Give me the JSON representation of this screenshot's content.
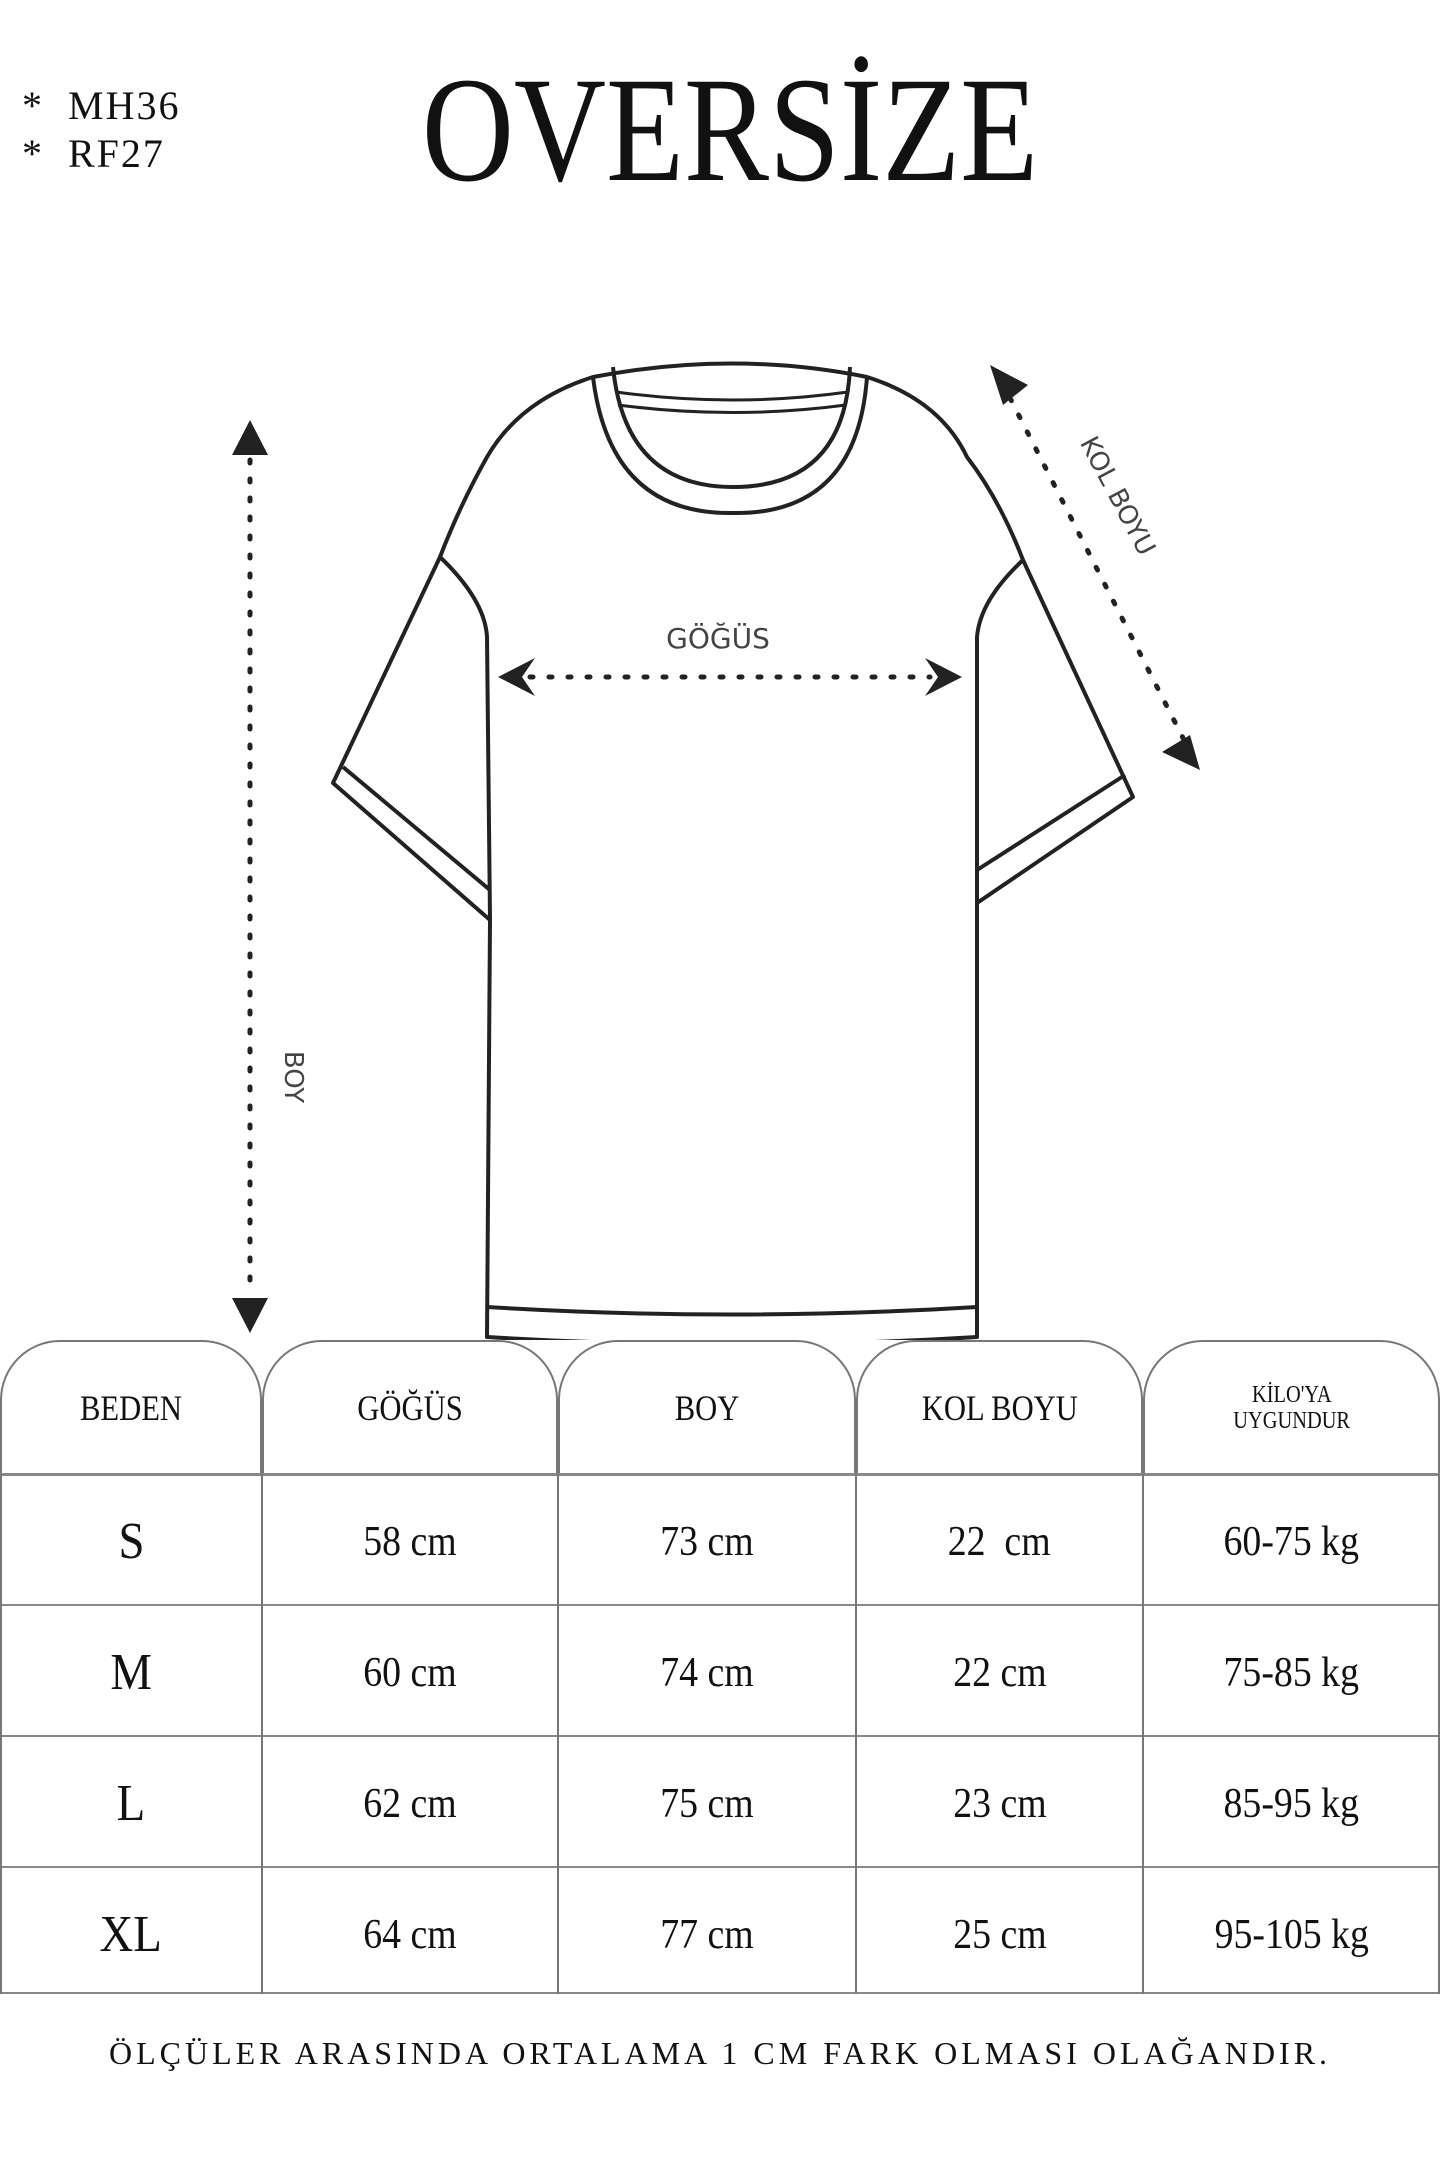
{
  "codes": [
    "*  MH36",
    "*  RF27"
  ],
  "title": "OVERSİZE",
  "diagram": {
    "chest_label": "GÖĞÜS",
    "length_label": "BOY",
    "sleeve_label": "KOL BOYU"
  },
  "table": {
    "headers": [
      "BEDEN",
      "GÖĞÜS",
      "BOY",
      "KOL BOYU",
      "KİLO'YA",
      "UYGUNDUR"
    ],
    "rows": [
      [
        "S",
        "58 cm",
        "73 cm",
        "22  cm",
        "60-75 kg"
      ],
      [
        "M",
        "60 cm",
        "74 cm",
        "22 cm",
        "75-85 kg"
      ],
      [
        "L",
        "62 cm",
        "75 cm",
        "23 cm",
        "85-95 kg"
      ],
      [
        "XL",
        "64 cm",
        "77 cm",
        "25 cm",
        "95-105 kg"
      ]
    ]
  },
  "footer": "ÖLÇÜLER ARASINDA ORTALAMA 1 CM FARK OLMASI OLAĞANDIR."
}
